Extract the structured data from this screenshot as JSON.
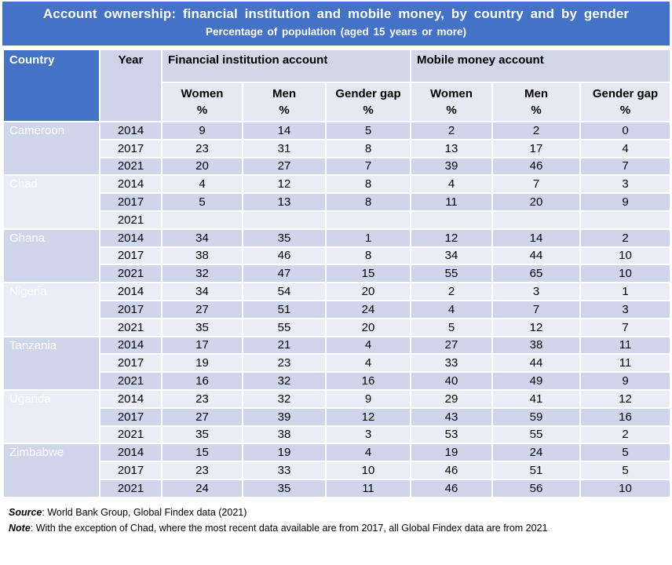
{
  "header": {
    "title": "Account ownership:  financial institution and mobile money, by country and by gender",
    "subtitle": "Percentage of population (aged 15 years or more)"
  },
  "table": {
    "headers": {
      "country": "Country",
      "year": "Year",
      "group_financial": "Financial institution account",
      "group_mobile": "Mobile money account",
      "sub": [
        {
          "label": "Women",
          "unit": "%"
        },
        {
          "label": "Men",
          "unit": "%"
        },
        {
          "label": "Gender gap",
          "unit": "%"
        },
        {
          "label": "Women",
          "unit": "%"
        },
        {
          "label": "Men",
          "unit": "%"
        },
        {
          "label": "Gender gap",
          "unit": "%"
        }
      ]
    },
    "countries": [
      {
        "name": "Cameroon",
        "rows": [
          [
            "2014",
            "9",
            "14",
            "5",
            "2",
            "2",
            "0"
          ],
          [
            "2017",
            "23",
            "31",
            "8",
            "13",
            "17",
            "4"
          ],
          [
            "2021",
            "20",
            "27",
            "7",
            "39",
            "46",
            "7"
          ]
        ]
      },
      {
        "name": "Chad",
        "rows": [
          [
            "2014",
            "4",
            "12",
            "8",
            "4",
            "7",
            "3"
          ],
          [
            "2017",
            "5",
            "13",
            "8",
            "11",
            "20",
            "9"
          ],
          [
            "2021",
            "",
            "",
            "",
            "",
            "",
            ""
          ]
        ]
      },
      {
        "name": "Ghana",
        "rows": [
          [
            "2014",
            "34",
            "35",
            "1",
            "12",
            "14",
            "2"
          ],
          [
            "2017",
            "38",
            "46",
            "8",
            "34",
            "44",
            "10"
          ],
          [
            "2021",
            "32",
            "47",
            "15",
            "55",
            "65",
            "10"
          ]
        ]
      },
      {
        "name": "Nigeria",
        "rows": [
          [
            "2014",
            "34",
            "54",
            "20",
            "2",
            "3",
            "1"
          ],
          [
            "2017",
            "27",
            "51",
            "24",
            "4",
            "7",
            "3"
          ],
          [
            "2021",
            "35",
            "55",
            "20",
            "5",
            "12",
            "7"
          ]
        ]
      },
      {
        "name": "Tanzania",
        "rows": [
          [
            "2014",
            "17",
            "21",
            "4",
            "27",
            "38",
            "11"
          ],
          [
            "2017",
            "19",
            "23",
            "4",
            "33",
            "44",
            "11"
          ],
          [
            "2021",
            "16",
            "32",
            "16",
            "40",
            "49",
            "9"
          ]
        ]
      },
      {
        "name": "Uganda",
        "rows": [
          [
            "2014",
            "23",
            "32",
            "9",
            "29",
            "41",
            "12"
          ],
          [
            "2017",
            "27",
            "39",
            "12",
            "43",
            "59",
            "16"
          ],
          [
            "2021",
            "35",
            "38",
            "3",
            "53",
            "55",
            "2"
          ]
        ]
      },
      {
        "name": "Zimbabwe",
        "rows": [
          [
            "2014",
            "15",
            "19",
            "4",
            "19",
            "24",
            "5"
          ],
          [
            "2017",
            "23",
            "33",
            "10",
            "46",
            "51",
            "5"
          ],
          [
            "2021",
            "24",
            "35",
            "11",
            "46",
            "56",
            "10"
          ]
        ]
      }
    ]
  },
  "footer": {
    "source_label": "Source",
    "source_text": ": World Bank Group, Global Findex data (2021)",
    "note_label": "Note",
    "note_text": ": With the exception of Chad, where the most recent data available are from 2017,  all Global Findex data are from 2021"
  },
  "colors": {
    "accent_blue": "#4472C4",
    "band_dark": "#CFD5EA",
    "band_light": "#EAECF6",
    "header_group_bg": "#D2D7E7",
    "header_sub_bg": "#E6E9F3"
  }
}
